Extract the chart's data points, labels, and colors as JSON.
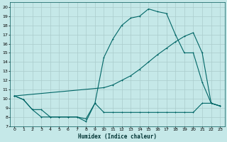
{
  "xlabel": "Humidex (Indice chaleur)",
  "bg_color": "#c5e8e8",
  "grid_color": "#aacccc",
  "line_color": "#006666",
  "xlim": [
    -0.5,
    23.5
  ],
  "ylim": [
    7.0,
    20.5
  ],
  "yticks": [
    7,
    8,
    9,
    10,
    11,
    12,
    13,
    14,
    15,
    16,
    17,
    18,
    19,
    20
  ],
  "xticks": [
    0,
    1,
    2,
    3,
    4,
    5,
    6,
    7,
    8,
    9,
    10,
    11,
    12,
    13,
    14,
    15,
    16,
    17,
    18,
    19,
    20,
    21,
    22,
    23
  ],
  "line1_x": [
    0,
    1,
    2,
    3,
    4,
    5,
    6,
    7,
    8,
    9,
    10,
    11,
    12,
    13,
    14,
    15,
    16,
    17,
    18,
    19,
    20,
    21,
    22,
    23
  ],
  "line1_y": [
    10.3,
    9.9,
    8.8,
    8.8,
    8.0,
    8.0,
    8.0,
    8.0,
    7.5,
    9.5,
    14.5,
    16.5,
    18.0,
    18.8,
    19.0,
    19.8,
    19.5,
    19.3,
    17.0,
    15.0,
    15.0,
    11.8,
    9.5,
    9.2
  ],
  "line1_markers": [
    0,
    1,
    2,
    3,
    4,
    5,
    6,
    7,
    8,
    9,
    10,
    11,
    12,
    13,
    14,
    15,
    16,
    17,
    18,
    19,
    20,
    21,
    22,
    23
  ],
  "line2_x": [
    0,
    10,
    11,
    12,
    13,
    14,
    15,
    16,
    17,
    18,
    19,
    20,
    21,
    22,
    23
  ],
  "line2_y": [
    10.3,
    11.2,
    11.5,
    12.0,
    12.5,
    13.2,
    14.0,
    14.8,
    15.5,
    16.2,
    16.8,
    17.2,
    15.0,
    9.5,
    9.2
  ],
  "line3_x": [
    0,
    1,
    2,
    3,
    4,
    5,
    6,
    7,
    8,
    9,
    10,
    11,
    12,
    13,
    14,
    15,
    16,
    17,
    18,
    19,
    20,
    21,
    22,
    23
  ],
  "line3_y": [
    10.3,
    9.9,
    8.8,
    8.0,
    8.0,
    8.0,
    8.0,
    8.0,
    7.8,
    9.5,
    8.5,
    8.5,
    8.5,
    8.5,
    8.5,
    8.5,
    8.5,
    8.5,
    8.5,
    8.5,
    8.5,
    9.5,
    9.5,
    9.2
  ]
}
